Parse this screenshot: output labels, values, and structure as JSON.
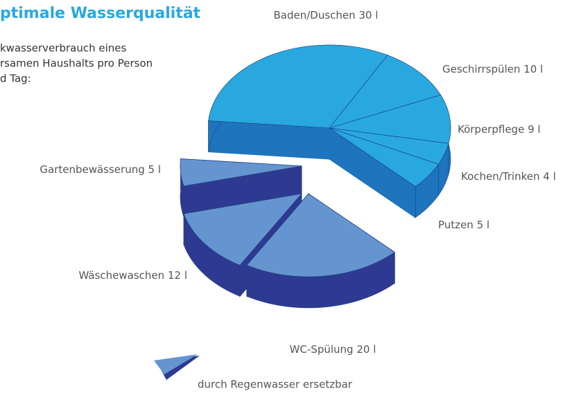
{
  "chart_data": {
    "type": "pie3d",
    "title": "ptimale Wasserqualität",
    "subtitle": [
      "kwasserverbrauch eines",
      "rsamen Haushalts pro Person",
      "d Tag:"
    ],
    "categories": [
      "Baden/Duschen",
      "Geschirrspülen",
      "Körperpflege",
      "Kochen/Trinken",
      "Putzen",
      "WC-Spülung",
      "Wäschewaschen",
      "Gartenbewässerung"
    ],
    "values": [
      30,
      10,
      9,
      4,
      5,
      20,
      12,
      5
    ],
    "value_labels": [
      "30 l",
      "10 l",
      "9 l",
      "4 l",
      "5 l",
      "20 l",
      "12 l",
      "5 l"
    ],
    "colors": [
      "#29a8e0",
      "#29a8e0",
      "#29a8e0",
      "#29a8e0",
      "#29a8e0",
      "#6495cf",
      "#6495cf",
      "#6495cf"
    ],
    "side_colors": [
      "#1e74bd",
      "#1e74bd",
      "#1e74bd",
      "#1e74bd",
      "#1e74bd",
      "#2e3a92",
      "#2e3a92",
      "#2e3a92"
    ],
    "legend": {
      "label": "durch Regenwasser ersetzbar",
      "color": "#6495cf",
      "side_color": "#2e3a92"
    }
  }
}
